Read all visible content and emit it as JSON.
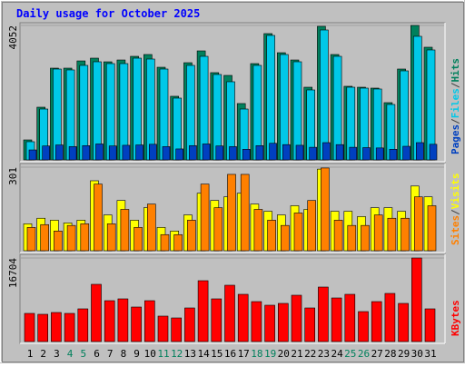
{
  "title": "Daily usage for October 2025",
  "categories": [
    "1",
    "2",
    "3",
    "4",
    "5",
    "6",
    "7",
    "8",
    "9",
    "10",
    "11",
    "12",
    "13",
    "14",
    "15",
    "16",
    "17",
    "18",
    "19",
    "20",
    "21",
    "22",
    "23",
    "24",
    "25",
    "26",
    "27",
    "28",
    "29",
    "30",
    "31"
  ],
  "category_colors": [
    "#000000",
    "#000000",
    "#000000",
    "#00805c",
    "#00805c",
    "#000000",
    "#000000",
    "#000000",
    "#000000",
    "#000000",
    "#00805c",
    "#00805c",
    "#000000",
    "#000000",
    "#000000",
    "#000000",
    "#000000",
    "#00805c",
    "#00805c",
    "#000000",
    "#000000",
    "#000000",
    "#000000",
    "#000000",
    "#00805c",
    "#00805c",
    "#000000",
    "#000000",
    "#000000",
    "#000000",
    "#000000"
  ],
  "legend_separator": "/",
  "chart_data": [
    {
      "type": "bar",
      "ylim": [
        0,
        4052
      ],
      "yticks": [
        4052
      ],
      "series": [
        {
          "name": "Hits",
          "color": "#00805c",
          "values": [
            602,
            1588,
            2765,
            2765,
            2983,
            3066,
            2956,
            3011,
            3121,
            3176,
            2792,
            1917,
            2929,
            3285,
            2629,
            2546,
            1698,
            2902,
            3806,
            3230,
            3011,
            2190,
            4025,
            3176,
            2218,
            2190,
            2163,
            1725,
            2738,
            4052,
            3395
          ]
        },
        {
          "name": "Files",
          "color": "#00c8e8",
          "values": [
            548,
            1533,
            2738,
            2711,
            2848,
            2957,
            2902,
            2902,
            3066,
            3039,
            2738,
            1862,
            2848,
            3121,
            2574,
            2355,
            1533,
            2848,
            3751,
            3176,
            2957,
            2108,
            3915,
            3121,
            2190,
            2163,
            2136,
            1670,
            2683,
            3724,
            3313
          ]
        },
        {
          "name": "Pages",
          "color": "#0040c0",
          "values": [
            300,
            420,
            450,
            400,
            430,
            480,
            420,
            440,
            450,
            470,
            400,
            330,
            430,
            480,
            420,
            400,
            320,
            430,
            500,
            460,
            440,
            380,
            520,
            460,
            380,
            370,
            360,
            320,
            410,
            520,
            470
          ]
        }
      ]
    },
    {
      "type": "bar",
      "ylim": [
        0,
        301
      ],
      "yticks": [
        301
      ],
      "series": [
        {
          "name": "Visits",
          "color": "#ffff00",
          "values": [
            97,
            117,
            110,
            100,
            110,
            252,
            129,
            181,
            110,
            155,
            84,
            71,
            129,
            207,
            181,
            194,
            207,
            168,
            142,
            129,
            162,
            149,
            294,
            142,
            142,
            123,
            155,
            155,
            142,
            233,
            194
          ]
        },
        {
          "name": "Sites",
          "color": "#ff8000",
          "values": [
            84,
            94,
            71,
            91,
            97,
            240,
            97,
            149,
            84,
            168,
            58,
            58,
            110,
            240,
            155,
            275,
            275,
            149,
            110,
            91,
            136,
            181,
            298,
            110,
            91,
            91,
            129,
            117,
            117,
            194,
            162
          ]
        }
      ]
    },
    {
      "type": "bar",
      "ylim": [
        0,
        16704
      ],
      "yticks": [
        16704
      ],
      "series": [
        {
          "name": "KBytes",
          "color": "#ff0000",
          "values": [
            5630,
            5448,
            5811,
            5630,
            6537,
            11439,
            8170,
            8533,
            6900,
            8170,
            5084,
            4721,
            6718,
            12165,
            8533,
            11257,
            9441,
            7989,
            7263,
            7626,
            9260,
            6718,
            10894,
            8715,
            9441,
            5992,
            7989,
            9623,
            7626,
            16704,
            6537
          ]
        }
      ]
    }
  ]
}
